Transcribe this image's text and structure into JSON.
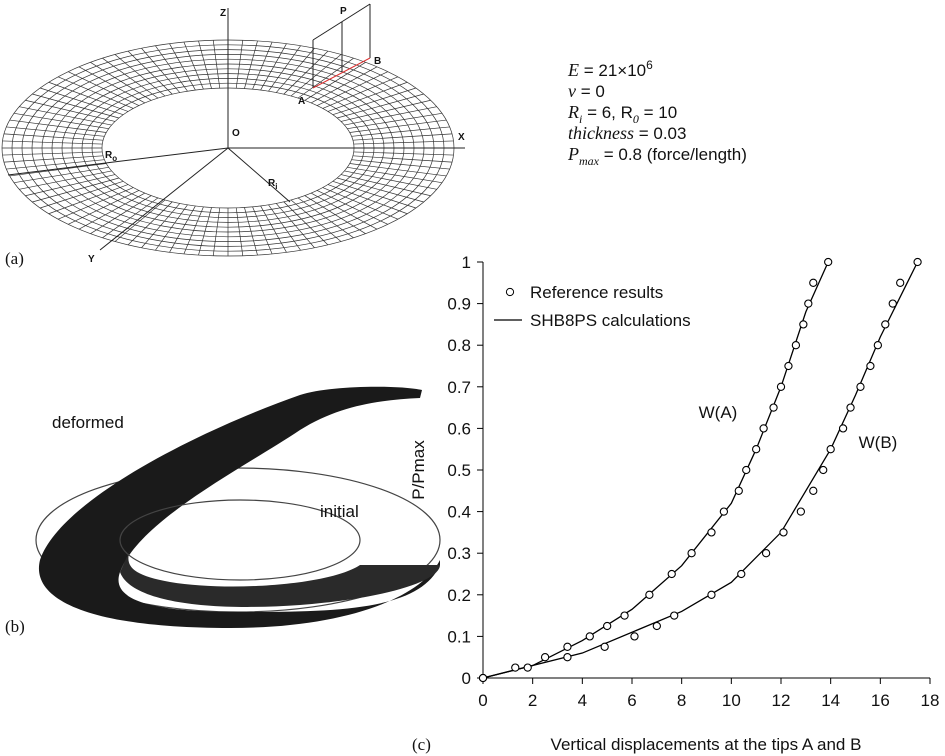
{
  "panel_a": {
    "caption": "(a)",
    "z": "Z",
    "p": "P",
    "a": "A",
    "b": "B",
    "o": "O",
    "x": "X",
    "y": "Y",
    "ro": "R",
    "ro_sub": "o",
    "ri": "R",
    "ri_sub": "i"
  },
  "parameters": [
    [
      {
        "text": "E",
        "style": "italic"
      },
      {
        "text": " = 21×10",
        "style": "normal"
      },
      {
        "text": "6",
        "style": "sup"
      }
    ],
    [
      {
        "text": "ν",
        "style": "italic"
      },
      {
        "text": " = 0",
        "style": "normal"
      }
    ],
    [
      {
        "text": "R",
        "style": "italic"
      },
      {
        "text": "i",
        "style": "sub"
      },
      {
        "text": " = 6, R",
        "style": "normal"
      },
      {
        "text": "0",
        "style": "sub"
      },
      {
        "text": " = 10",
        "style": "normal"
      }
    ],
    [
      {
        "text": "thickness",
        "style": "italic"
      },
      {
        "text": " = 0.03",
        "style": "normal"
      }
    ],
    [
      {
        "text": "P",
        "style": "italic"
      },
      {
        "text": "max",
        "style": "sub"
      },
      {
        "text": " = 0.8 (force/length)",
        "style": "normal"
      }
    ]
  ],
  "panel_b": {
    "caption": "(b)",
    "deformed": "deformed",
    "initial": "initial"
  },
  "chart_data": {
    "type": "line",
    "caption": "(c)",
    "x_label": "Vertical displacements at the tips A and B",
    "y_label": "P/Pmax",
    "xlim": [
      0,
      18
    ],
    "ylim": [
      0,
      1
    ],
    "xticks": [
      0,
      2,
      4,
      6,
      8,
      10,
      12,
      14,
      16,
      18
    ],
    "yticks": [
      0,
      0.1,
      0.2,
      0.3,
      0.4,
      0.5,
      0.6,
      0.7,
      0.8,
      0.9,
      1
    ],
    "annotations": [
      "W(A)",
      "W(B)"
    ],
    "color": "#000000",
    "series": [
      {
        "name": "Reference results",
        "style": "markers",
        "curves": [
          {
            "x": [
              0,
              1.3,
              1.8,
              2.5,
              3.4,
              4.3,
              5,
              5.7,
              6.7,
              7.6,
              8.4,
              9.2,
              9.7,
              10.3,
              10.6,
              11,
              11.3,
              11.7,
              12,
              12.3,
              12.6,
              12.9,
              13.1,
              13.3,
              13.9
            ],
            "y": [
              0,
              0.025,
              0.025,
              0.05,
              0.075,
              0.1,
              0.125,
              0.15,
              0.2,
              0.25,
              0.3,
              0.35,
              0.4,
              0.45,
              0.5,
              0.55,
              0.6,
              0.65,
              0.7,
              0.75,
              0.8,
              0.85,
              0.9,
              0.95,
              1
            ]
          },
          {
            "x": [
              0,
              3.4,
              4.9,
              6.1,
              7,
              7.7,
              9.2,
              10.4,
              11.4,
              12.1,
              12.8,
              13.3,
              13.7,
              14,
              14.5,
              14.8,
              15.2,
              15.6,
              15.9,
              16.2,
              16.5,
              16.8,
              17.5
            ],
            "y": [
              0,
              0.05,
              0.075,
              0.1,
              0.125,
              0.15,
              0.2,
              0.25,
              0.3,
              0.35,
              0.4,
              0.45,
              0.5,
              0.55,
              0.6,
              0.65,
              0.7,
              0.75,
              0.8,
              0.85,
              0.9,
              0.95,
              1
            ]
          }
        ]
      },
      {
        "name": "SHB8PS calculations",
        "style": "line",
        "curves": [
          {
            "x": [
              0,
              2,
              4,
              6,
              8,
              10,
              11,
              12,
              13,
              13.9
            ],
            "y": [
              0,
              0.03,
              0.09,
              0.165,
              0.27,
              0.42,
              0.55,
              0.7,
              0.88,
              1
            ]
          },
          {
            "x": [
              0,
              4,
              8,
              10,
              12,
              14,
              15,
              16,
              17,
              17.5
            ],
            "y": [
              0,
              0.06,
              0.16,
              0.23,
              0.35,
              0.55,
              0.68,
              0.82,
              0.94,
              1
            ]
          }
        ]
      }
    ]
  }
}
